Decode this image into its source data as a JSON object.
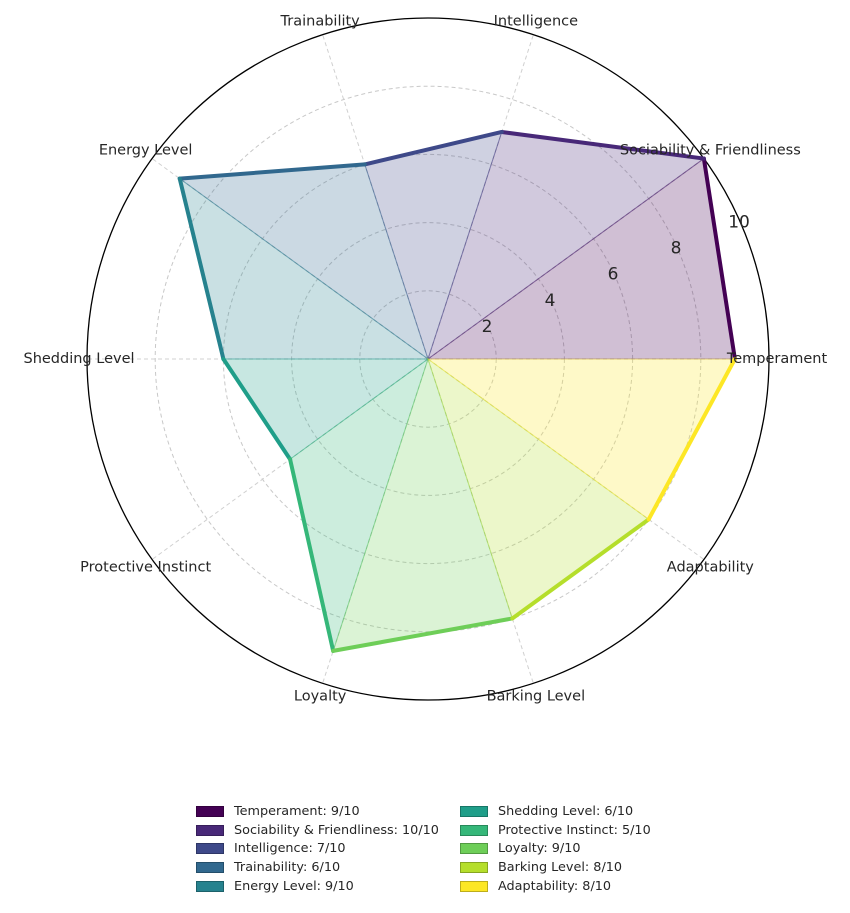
{
  "chart_data": {
    "type": "radar",
    "rmax": 10,
    "ticks": [
      "2",
      "4",
      "6",
      "8",
      "10"
    ],
    "tick_values": [
      2,
      4,
      6,
      8,
      10
    ],
    "grid": true,
    "categories": [
      {
        "label": "Temperament",
        "value": 9,
        "color": "#440154"
      },
      {
        "label": "Sociability & Friendliness",
        "value": 10,
        "color": "#482878"
      },
      {
        "label": "Intelligence",
        "value": 7,
        "color": "#3e4989"
      },
      {
        "label": "Trainability",
        "value": 6,
        "color": "#31688e"
      },
      {
        "label": "Energy Level",
        "value": 9,
        "color": "#26828e"
      },
      {
        "label": "Shedding Level",
        "value": 6,
        "color": "#1f9e89"
      },
      {
        "label": "Protective Instinct",
        "value": 5,
        "color": "#35b779"
      },
      {
        "label": "Loyalty",
        "value": 9,
        "color": "#6ece58"
      },
      {
        "label": "Barking Level",
        "value": 8,
        "color": "#b5de2b"
      },
      {
        "label": "Adaptability",
        "value": 8,
        "color": "#fde725"
      }
    ],
    "legend": [
      "Temperament: 9/10",
      "Sociability & Friendliness: 10/10",
      "Intelligence: 7/10",
      "Trainability: 6/10",
      "Energy Level: 9/10",
      "Shedding Level: 6/10",
      "Protective Instinct: 5/10",
      "Loyalty: 9/10",
      "Barking Level: 8/10",
      "Adaptability: 8/10"
    ],
    "legend_position": "bottom-center"
  }
}
